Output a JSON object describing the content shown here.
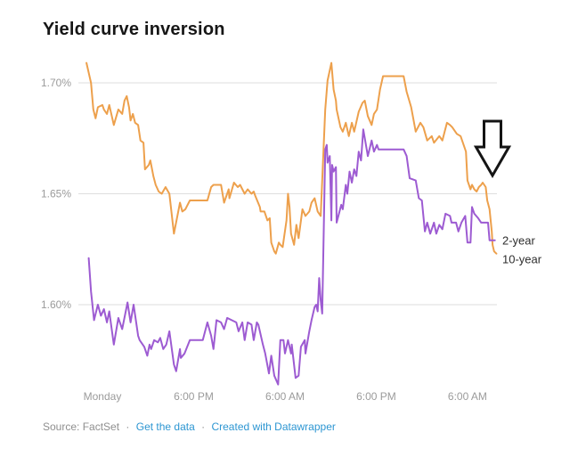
{
  "title": "Yield curve inversion",
  "footer": {
    "source": "Source: FactSet",
    "separator": "·",
    "get_data": "Get the data",
    "created_with": "Created with Datawrapper"
  },
  "colors": {
    "background": "#ffffff",
    "title_text": "#161616",
    "axis_text": "#9b9b9b",
    "grid": "#dedede",
    "legend_text": "#2e2e2e",
    "source_text": "#8f8f8f",
    "link": "#2D96D2",
    "orange_10yr": "#EDA04C",
    "purple_2yr": "#9D5BD2",
    "arrow_stroke": "#141414",
    "arrow_fill": "#ffffff"
  },
  "chart_data": {
    "type": "line",
    "title": "Yield curve inversion",
    "xlabel": "",
    "ylabel": "",
    "x_unit": "hours (ticks every 12 hours)",
    "xlim": [
      -2.5,
      52.5
    ],
    "ylim": [
      1.555,
      1.715
    ],
    "grid": "horizontal",
    "legend_position": "right-of-line-end",
    "x_ticks": [
      {
        "t": 0,
        "label": "Monday"
      },
      {
        "t": 12,
        "label": "6:00 PM"
      },
      {
        "t": 24,
        "label": "6:00 AM"
      },
      {
        "t": 36,
        "label": "6:00 PM"
      },
      {
        "t": 48,
        "label": "6:00 AM"
      }
    ],
    "y_ticks": [
      {
        "v": 1.7,
        "label": "1.70%"
      },
      {
        "v": 1.65,
        "label": "1.65%"
      },
      {
        "v": 1.6,
        "label": "1.60%"
      }
    ],
    "series": [
      {
        "name": "2-year",
        "color": "#9D5BD2",
        "points": [
          [
            -1.8,
            1.621
          ],
          [
            -1.5,
            1.606
          ],
          [
            -1.1,
            1.593
          ],
          [
            -0.6,
            1.6
          ],
          [
            -0.2,
            1.595
          ],
          [
            0.2,
            1.598
          ],
          [
            0.6,
            1.592
          ],
          [
            0.9,
            1.597
          ],
          [
            1.5,
            1.582
          ],
          [
            2.1,
            1.594
          ],
          [
            2.6,
            1.589
          ],
          [
            3.3,
            1.601
          ],
          [
            3.7,
            1.592
          ],
          [
            4.1,
            1.6
          ],
          [
            4.7,
            1.586
          ],
          [
            4.9,
            1.584
          ],
          [
            5.5,
            1.581
          ],
          [
            5.9,
            1.577
          ],
          [
            6.2,
            1.582
          ],
          [
            6.4,
            1.58
          ],
          [
            6.8,
            1.584
          ],
          [
            7.3,
            1.583
          ],
          [
            7.6,
            1.585
          ],
          [
            8.0,
            1.58
          ],
          [
            8.4,
            1.582
          ],
          [
            8.8,
            1.588
          ],
          [
            9.4,
            1.573
          ],
          [
            9.7,
            1.57
          ],
          [
            10.2,
            1.58
          ],
          [
            10.3,
            1.576
          ],
          [
            10.8,
            1.578
          ],
          [
            11.5,
            1.584
          ],
          [
            12.3,
            1.584
          ],
          [
            13.2,
            1.584
          ],
          [
            13.8,
            1.592
          ],
          [
            14.3,
            1.586
          ],
          [
            14.6,
            1.58
          ],
          [
            15.0,
            1.593
          ],
          [
            15.6,
            1.592
          ],
          [
            16.0,
            1.589
          ],
          [
            16.4,
            1.594
          ],
          [
            17.0,
            1.593
          ],
          [
            17.6,
            1.592
          ],
          [
            17.9,
            1.588
          ],
          [
            18.4,
            1.592
          ],
          [
            18.7,
            1.584
          ],
          [
            19.1,
            1.592
          ],
          [
            19.6,
            1.591
          ],
          [
            19.9,
            1.584
          ],
          [
            20.3,
            1.592
          ],
          [
            20.5,
            1.591
          ],
          [
            21.1,
            1.582
          ],
          [
            21.4,
            1.578
          ],
          [
            21.9,
            1.569
          ],
          [
            22.2,
            1.577
          ],
          [
            22.6,
            1.568
          ],
          [
            23.1,
            1.564
          ],
          [
            23.4,
            1.584
          ],
          [
            23.8,
            1.584
          ],
          [
            24.0,
            1.578
          ],
          [
            24.4,
            1.584
          ],
          [
            24.8,
            1.578
          ],
          [
            24.9,
            1.582
          ],
          [
            25.4,
            1.567
          ],
          [
            25.8,
            1.568
          ],
          [
            26.1,
            1.581
          ],
          [
            26.6,
            1.584
          ],
          [
            26.7,
            1.578
          ],
          [
            27.2,
            1.588
          ],
          [
            27.5,
            1.593
          ],
          [
            27.9,
            1.599
          ],
          [
            28.1,
            1.6
          ],
          [
            28.3,
            1.597
          ],
          [
            28.5,
            1.612
          ],
          [
            28.7,
            1.602
          ],
          [
            28.9,
            1.596
          ],
          [
            29.3,
            1.67
          ],
          [
            29.5,
            1.672
          ],
          [
            29.6,
            1.664
          ],
          [
            29.9,
            1.667
          ],
          [
            30.1,
            1.638
          ],
          [
            30.2,
            1.663
          ],
          [
            30.4,
            1.66
          ],
          [
            30.7,
            1.662
          ],
          [
            30.8,
            1.637
          ],
          [
            31.4,
            1.645
          ],
          [
            31.6,
            1.643
          ],
          [
            32.0,
            1.654
          ],
          [
            32.2,
            1.65
          ],
          [
            32.5,
            1.66
          ],
          [
            32.8,
            1.655
          ],
          [
            33.1,
            1.661
          ],
          [
            33.4,
            1.658
          ],
          [
            33.7,
            1.669
          ],
          [
            34.0,
            1.665
          ],
          [
            34.3,
            1.679
          ],
          [
            34.8,
            1.669
          ],
          [
            34.9,
            1.667
          ],
          [
            35.4,
            1.674
          ],
          [
            35.7,
            1.669
          ],
          [
            36.1,
            1.672
          ],
          [
            36.3,
            1.67
          ],
          [
            37.5,
            1.67
          ],
          [
            38.6,
            1.67
          ],
          [
            39.6,
            1.67
          ],
          [
            40.0,
            1.667
          ],
          [
            40.4,
            1.657
          ],
          [
            41.2,
            1.656
          ],
          [
            41.6,
            1.648
          ],
          [
            42.0,
            1.647
          ],
          [
            42.4,
            1.633
          ],
          [
            42.7,
            1.637
          ],
          [
            43.1,
            1.632
          ],
          [
            43.6,
            1.637
          ],
          [
            43.9,
            1.632
          ],
          [
            44.3,
            1.636
          ],
          [
            44.7,
            1.634
          ],
          [
            45.1,
            1.641
          ],
          [
            45.7,
            1.64
          ],
          [
            45.9,
            1.637
          ],
          [
            46.5,
            1.637
          ],
          [
            46.8,
            1.633
          ],
          [
            47.2,
            1.637
          ],
          [
            47.7,
            1.64
          ],
          [
            48.0,
            1.628
          ],
          [
            48.4,
            1.628
          ],
          [
            48.6,
            1.644
          ],
          [
            48.9,
            1.641
          ],
          [
            49.4,
            1.639
          ],
          [
            49.8,
            1.637
          ],
          [
            50.2,
            1.637
          ],
          [
            50.7,
            1.637
          ],
          [
            50.9,
            1.629
          ],
          [
            51.3,
            1.629
          ],
          [
            51.6,
            1.629
          ]
        ]
      },
      {
        "name": "10-year",
        "color": "#EDA04C",
        "points": [
          [
            -2.1,
            1.709
          ],
          [
            -1.5,
            1.7
          ],
          [
            -1.2,
            1.688
          ],
          [
            -0.9,
            1.684
          ],
          [
            -0.6,
            1.689
          ],
          [
            0,
            1.69
          ],
          [
            0.2,
            1.688
          ],
          [
            0.6,
            1.686
          ],
          [
            0.9,
            1.69
          ],
          [
            1.5,
            1.681
          ],
          [
            2.1,
            1.688
          ],
          [
            2.6,
            1.686
          ],
          [
            2.9,
            1.692
          ],
          [
            3.2,
            1.694
          ],
          [
            3.5,
            1.689
          ],
          [
            3.7,
            1.683
          ],
          [
            4.0,
            1.686
          ],
          [
            4.3,
            1.682
          ],
          [
            4.7,
            1.681
          ],
          [
            5.0,
            1.674
          ],
          [
            5.4,
            1.673
          ],
          [
            5.6,
            1.661
          ],
          [
            6.1,
            1.663
          ],
          [
            6.3,
            1.665
          ],
          [
            6.7,
            1.658
          ],
          [
            7.0,
            1.654
          ],
          [
            7.4,
            1.651
          ],
          [
            7.8,
            1.65
          ],
          [
            8.3,
            1.653
          ],
          [
            8.8,
            1.65
          ],
          [
            9.4,
            1.632
          ],
          [
            9.8,
            1.639
          ],
          [
            10.2,
            1.646
          ],
          [
            10.5,
            1.642
          ],
          [
            10.9,
            1.643
          ],
          [
            11.5,
            1.647
          ],
          [
            12.3,
            1.647
          ],
          [
            13.2,
            1.647
          ],
          [
            13.8,
            1.647
          ],
          [
            14.3,
            1.653
          ],
          [
            14.6,
            1.654
          ],
          [
            15.2,
            1.654
          ],
          [
            15.6,
            1.654
          ],
          [
            16.0,
            1.646
          ],
          [
            16.6,
            1.652
          ],
          [
            16.7,
            1.648
          ],
          [
            17.3,
            1.655
          ],
          [
            17.8,
            1.653
          ],
          [
            18.1,
            1.654
          ],
          [
            18.7,
            1.65
          ],
          [
            19.1,
            1.652
          ],
          [
            19.6,
            1.65
          ],
          [
            19.9,
            1.651
          ],
          [
            20.1,
            1.649
          ],
          [
            20.7,
            1.644
          ],
          [
            20.8,
            1.642
          ],
          [
            21.3,
            1.642
          ],
          [
            21.7,
            1.638
          ],
          [
            22.0,
            1.639
          ],
          [
            22.2,
            1.628
          ],
          [
            22.6,
            1.624
          ],
          [
            22.8,
            1.623
          ],
          [
            23.2,
            1.628
          ],
          [
            23.4,
            1.627
          ],
          [
            23.7,
            1.626
          ],
          [
            24.2,
            1.638
          ],
          [
            24.4,
            1.65
          ],
          [
            24.6,
            1.644
          ],
          [
            24.8,
            1.632
          ],
          [
            25.2,
            1.627
          ],
          [
            25.5,
            1.636
          ],
          [
            25.8,
            1.63
          ],
          [
            26.3,
            1.643
          ],
          [
            26.7,
            1.64
          ],
          [
            27.2,
            1.642
          ],
          [
            27.5,
            1.646
          ],
          [
            27.9,
            1.648
          ],
          [
            28.3,
            1.642
          ],
          [
            28.7,
            1.64
          ],
          [
            29.3,
            1.688
          ],
          [
            29.6,
            1.701
          ],
          [
            30.1,
            1.709
          ],
          [
            30.4,
            1.697
          ],
          [
            30.7,
            1.692
          ],
          [
            30.8,
            1.688
          ],
          [
            31.3,
            1.68
          ],
          [
            31.6,
            1.678
          ],
          [
            32.0,
            1.682
          ],
          [
            32.4,
            1.676
          ],
          [
            32.8,
            1.682
          ],
          [
            33.1,
            1.678
          ],
          [
            33.7,
            1.687
          ],
          [
            34.2,
            1.691
          ],
          [
            34.5,
            1.692
          ],
          [
            34.9,
            1.685
          ],
          [
            35.4,
            1.681
          ],
          [
            35.7,
            1.686
          ],
          [
            36.1,
            1.688
          ],
          [
            36.5,
            1.697
          ],
          [
            36.9,
            1.703
          ],
          [
            37.5,
            1.703
          ],
          [
            38.1,
            1.703
          ],
          [
            38.6,
            1.703
          ],
          [
            39.2,
            1.703
          ],
          [
            39.6,
            1.703
          ],
          [
            40.0,
            1.696
          ],
          [
            40.6,
            1.689
          ],
          [
            41.2,
            1.678
          ],
          [
            41.8,
            1.682
          ],
          [
            42.2,
            1.68
          ],
          [
            42.7,
            1.674
          ],
          [
            43.3,
            1.676
          ],
          [
            43.6,
            1.673
          ],
          [
            44.3,
            1.676
          ],
          [
            44.7,
            1.674
          ],
          [
            45.3,
            1.682
          ],
          [
            45.7,
            1.681
          ],
          [
            46.0,
            1.68
          ],
          [
            46.6,
            1.677
          ],
          [
            47.1,
            1.676
          ],
          [
            47.8,
            1.669
          ],
          [
            48.0,
            1.656
          ],
          [
            48.4,
            1.652
          ],
          [
            48.6,
            1.654
          ],
          [
            48.9,
            1.652
          ],
          [
            49.2,
            1.651
          ],
          [
            49.5,
            1.653
          ],
          [
            49.8,
            1.654
          ],
          [
            50.0,
            1.655
          ],
          [
            50.4,
            1.653
          ],
          [
            50.6,
            1.647
          ],
          [
            50.9,
            1.643
          ],
          [
            51.2,
            1.633
          ],
          [
            51.3,
            1.627
          ],
          [
            51.5,
            1.624
          ],
          [
            51.8,
            1.623
          ]
        ]
      }
    ],
    "annotation": {
      "shape": "down-arrow",
      "x_tip": 553,
      "y_top": 136,
      "y_head": 165,
      "y_tip": 197,
      "shaft_width": 19,
      "head_width": 37,
      "stroke": "#141414",
      "fill": "#ffffff",
      "stroke_width": 3
    }
  }
}
